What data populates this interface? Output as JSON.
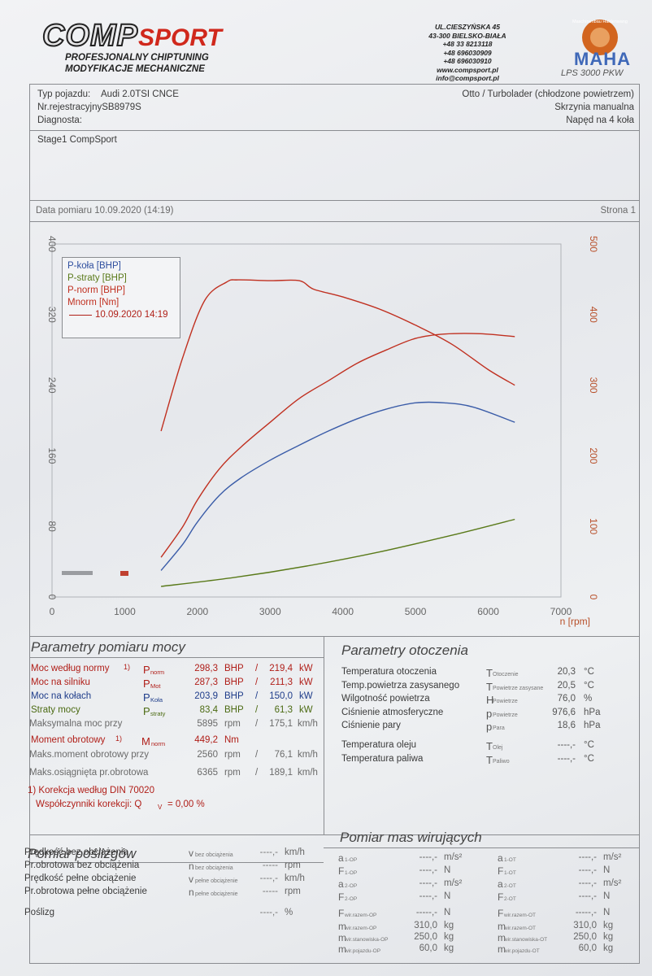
{
  "header": {
    "logo_comp": "COMP",
    "logo_sport": "SPORT",
    "tagline1": "PROFESJONALNY CHIPTUNING",
    "tagline2": "MODYFIKACJE MECHANICZNE",
    "address": [
      "UL.CIESZYŃSKA 45",
      "43-300 BIELSKO-BIAŁA",
      "+48 33 8213118",
      "+48 696030909",
      "+48 696030910",
      "www.compsport.pl",
      "info@compsport.pl"
    ],
    "maha_ring": "Maschinenbau Haldenwang",
    "maha": "MAHA",
    "model": "LPS 3000 PKW"
  },
  "vehicle": {
    "type_label": "Typ pojazdu:",
    "type_value": "Audi 2.0TSI CNCE",
    "reg_label": "Nr.rejestracyjny",
    "reg_value": "SB8979S",
    "diag_label": "Diagnosta:",
    "engine": "Otto / Turbolader (chłodzone powietrzem)",
    "gearbox": "Skrzynia manualna",
    "drive": "Napęd na 4 koła",
    "stage": "Stage1 CompSport"
  },
  "measure": {
    "date": "Data pomiaru 10.09.2020 (14:19)",
    "page": "Strona 1"
  },
  "chart_data": {
    "type": "line",
    "xlabel": "n [rpm]",
    "x_ticks": [
      0,
      1000,
      2000,
      3000,
      4000,
      5000,
      6000,
      7000
    ],
    "xlim": [
      0,
      7000
    ],
    "y_left_ticks": [
      0,
      80,
      160,
      240,
      320,
      400
    ],
    "ylim_left": [
      0,
      400
    ],
    "y_right_ticks": [
      0,
      100,
      200,
      300,
      400,
      500
    ],
    "ylim_right": [
      0,
      500
    ],
    "legend": [
      "P-koła [BHP]",
      "P-straty [BHP]",
      "P-norm [BHP]",
      "Mnorm [Nm]",
      "10.09.2020 14:19"
    ],
    "legend_colors": [
      "#2f4f9f",
      "#5a7a1a",
      "#c03020",
      "#c03020",
      "#b02018"
    ],
    "series": [
      {
        "name": "P-koła [BHP]",
        "axis": "left",
        "color": "#3a5ca8",
        "x": [
          1500,
          1800,
          2000,
          2300,
          2600,
          3000,
          3400,
          3800,
          4200,
          4600,
          5000,
          5400,
          5800,
          6365
        ],
        "y": [
          30,
          60,
          85,
          115,
          135,
          155,
          172,
          188,
          202,
          213,
          220,
          220,
          215,
          198
        ]
      },
      {
        "name": "P-straty [BHP]",
        "axis": "left",
        "color": "#5a7a1a",
        "x": [
          1500,
          2500,
          3500,
          4500,
          5500,
          6365
        ],
        "y": [
          12,
          22,
          35,
          51,
          70,
          88
        ]
      },
      {
        "name": "P-norm [BHP]",
        "axis": "left",
        "color": "#c03020",
        "x": [
          1500,
          1800,
          2000,
          2300,
          2600,
          3000,
          3400,
          3800,
          4200,
          4600,
          5000,
          5400,
          5895,
          6365
        ],
        "y": [
          45,
          80,
          110,
          145,
          170,
          198,
          225,
          245,
          265,
          280,
          293,
          298,
          298.3,
          295
        ]
      },
      {
        "name": "Mnorm [Nm]",
        "axis": "right",
        "color": "#c03020",
        "x": [
          1500,
          1800,
          2100,
          2400,
          2560,
          3000,
          3400,
          3600,
          4000,
          4500,
          5000,
          5500,
          6000,
          6365
        ],
        "y": [
          235,
          340,
          420,
          446,
          449.2,
          448,
          448,
          436,
          425,
          408,
          385,
          358,
          322,
          300
        ]
      }
    ]
  },
  "power": {
    "title": "Parametry pomiaru mocy",
    "rows": [
      {
        "label": "Moc według normy",
        "sup": "1)",
        "sym": "P",
        "sub": "norm",
        "v1": "298,3",
        "u1": "BHP",
        "v2": "219,4",
        "u2": "kW"
      },
      {
        "label": "Moc na silniku",
        "sup": "",
        "sym": "P",
        "sub": "Mot",
        "v1": "287,3",
        "u1": "BHP",
        "v2": "211,3",
        "u2": "kW"
      },
      {
        "label": "Moc na kołach",
        "sup": "",
        "sym": "P",
        "sub": "Koła",
        "v1": "203,9",
        "u1": "BHP",
        "v2": "150,0",
        "u2": "kW"
      },
      {
        "label": "Straty mocy",
        "sup": "",
        "sym": "P",
        "sub": "straty",
        "v1": "83,4",
        "u1": "BHP",
        "v2": "61,3",
        "u2": "kW"
      }
    ],
    "max_power_label": "Maksymalna moc przy",
    "max_power_rpm": "5895",
    "max_power_speed": "175,1",
    "torque_label": "Moment obrotowy",
    "torque_sup": "1)",
    "torque_sym": "M",
    "torque_sub": "norm",
    "torque_value": "449,2",
    "torque_unit": "Nm",
    "max_torque_label": "Maks.moment obrotowy przy",
    "max_torque_rpm": "2560",
    "max_torque_speed": "76,1",
    "max_rpm_label": "Maks.osiągnięta pr.obrotowa",
    "max_rpm": "6365",
    "max_rpm_speed": "189,1",
    "rpm_unit": "rpm",
    "kmh_unit": "km/h",
    "slash": "/",
    "correction_note": "1) Korekcja według DIN 70020",
    "correction_factor_label": "Współczynniki korekcji: Q",
    "correction_factor_sub": "V",
    "correction_factor_value": "= 0,00 %"
  },
  "ambient": {
    "title": "Parametry otoczenia",
    "rows": [
      {
        "label": "Temperatura otoczenia",
        "sym": "T",
        "sub": "Otoczenie",
        "value": "20,3",
        "unit": "°C"
      },
      {
        "label": "Temp.powietrza zasysanego",
        "sym": "T",
        "sub": "Powietrze zasysane",
        "value": "20,5",
        "unit": "°C"
      },
      {
        "label": "Wilgotność powietrza",
        "sym": "H",
        "sub": "Powietrze",
        "value": "76,0",
        "unit": "%"
      },
      {
        "label": "Ciśnienie atmosferyczne",
        "sym": "p",
        "sub": "Powietrze",
        "value": "976,6",
        "unit": "hPa"
      },
      {
        "label": "Ciśnienie pary",
        "sym": "p",
        "sub": "Para",
        "value": "18,6",
        "unit": "hPa"
      },
      {
        "label": "Temperatura oleju",
        "sym": "T",
        "sub": "Olej",
        "value": "----,-",
        "unit": "°C"
      },
      {
        "label": "Temperatura paliwa",
        "sym": "T",
        "sub": "Paliwo",
        "value": "----,-",
        "unit": "°C"
      }
    ]
  },
  "slip": {
    "title": "Pomiar poślizgów",
    "rows": [
      {
        "label": "Prędkość bez obciążenia",
        "sym": "v",
        "sub": "bez obciążenia",
        "value": "----,-",
        "unit": "km/h"
      },
      {
        "label": "Pr.obrotowa bez obciążenia",
        "sym": "n",
        "sub": "bez obciążenia",
        "value": "-----",
        "unit": "rpm"
      },
      {
        "label": "Prędkość pełne obciążenie",
        "sym": "v",
        "sub": "pełne obciążenie",
        "value": "----,-",
        "unit": "km/h"
      },
      {
        "label": "Pr.obrotowa pełne obciążenie",
        "sym": "n",
        "sub": "pełne obciążenie",
        "value": "-----",
        "unit": "rpm"
      },
      {
        "label": "Poślizg",
        "sym": "",
        "sub": "",
        "value": "----,-",
        "unit": "%"
      }
    ]
  },
  "rot": {
    "title": "Pomiar mas wirujących",
    "left": [
      {
        "sym": "a",
        "sub": "1-OP",
        "value": "----,-",
        "unit": "m/s²"
      },
      {
        "sym": "F",
        "sub": "1-OP",
        "value": "----,-",
        "unit": "N"
      },
      {
        "sym": "a",
        "sub": "2-OP",
        "value": "----,-",
        "unit": "m/s²"
      },
      {
        "sym": "F",
        "sub": "2-OP",
        "value": "----,-",
        "unit": "N"
      },
      {
        "sym": "F",
        "sub": "wir.razem-OP",
        "value": "-----,-",
        "unit": "N"
      },
      {
        "sym": "m",
        "sub": "wir.razem-OP",
        "value": "310,0",
        "unit": "kg"
      },
      {
        "sym": "m",
        "sub": "wir.stanowiska-OP",
        "value": "250,0",
        "unit": "kg"
      },
      {
        "sym": "m",
        "sub": "wir.pojazdu-OP",
        "value": "60,0",
        "unit": "kg"
      }
    ],
    "right": [
      {
        "sym": "a",
        "sub": "1-OT",
        "value": "----,-",
        "unit": "m/s²"
      },
      {
        "sym": "F",
        "sub": "1-OT",
        "value": "----,-",
        "unit": "N"
      },
      {
        "sym": "a",
        "sub": "2-OT",
        "value": "----,-",
        "unit": "m/s²"
      },
      {
        "sym": "F",
        "sub": "2-OT",
        "value": "----,-",
        "unit": "N"
      },
      {
        "sym": "F",
        "sub": "wir.razem-OT",
        "value": "-----,-",
        "unit": "N"
      },
      {
        "sym": "m",
        "sub": "wir.razem-OT",
        "value": "310,0",
        "unit": "kg"
      },
      {
        "sym": "m",
        "sub": "wir.stanowiska-OT",
        "value": "250,0",
        "unit": "kg"
      },
      {
        "sym": "m",
        "sub": "wir.pojazdu-OT",
        "value": "60,0",
        "unit": "kg"
      }
    ]
  }
}
